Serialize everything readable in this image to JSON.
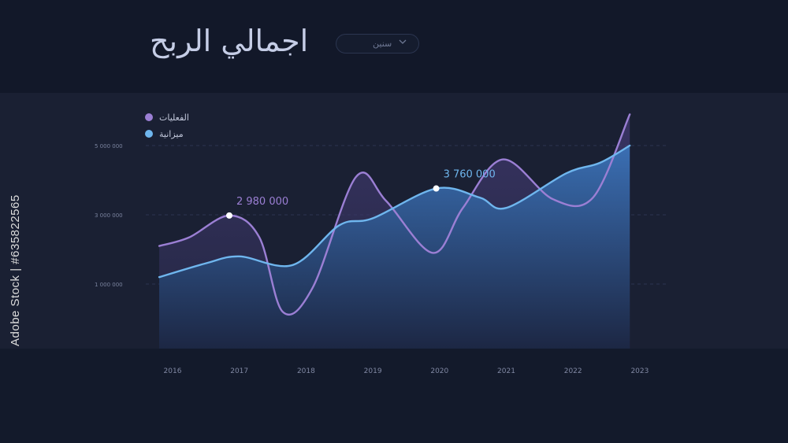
{
  "header": {
    "title": "اجمالي الربح",
    "dropdown": {
      "value": "سنين",
      "icon": "chevron-down-icon"
    }
  },
  "side_text": "Adobe Stock | #635822565",
  "colors": {
    "actual": "#9b7fd4",
    "budget": "#6fb6ee",
    "marker": "#ffffff"
  },
  "chart_data": {
    "type": "area",
    "x": [
      "2016",
      "2017",
      "2018",
      "2019",
      "2020",
      "2021",
      "2022",
      "2023"
    ],
    "y_ticks": [
      {
        "value": 1000000,
        "label": "1 000 000"
      },
      {
        "value": 3000000,
        "label": "3 000 000"
      },
      {
        "value": 5000000,
        "label": "5 000 000"
      }
    ],
    "ylim": [
      -500000,
      6500000
    ],
    "series": [
      {
        "name": "الفعليات",
        "color": "#9b7fd4",
        "points": [
          [
            2015.8,
            2100000
          ],
          [
            2016.25,
            2350000
          ],
          [
            2016.85,
            2980000
          ],
          [
            2017.3,
            2350000
          ],
          [
            2017.65,
            200000
          ],
          [
            2018.1,
            900000
          ],
          [
            2018.75,
            4100000
          ],
          [
            2019.2,
            3400000
          ],
          [
            2019.9,
            1900000
          ],
          [
            2020.35,
            3200000
          ],
          [
            2020.95,
            4600000
          ],
          [
            2021.7,
            3450000
          ],
          [
            2022.3,
            3500000
          ],
          [
            2022.85,
            5900000
          ]
        ]
      },
      {
        "name": "ميزانية",
        "color": "#6fb6ee",
        "points": [
          [
            2015.8,
            1200000
          ],
          [
            2016.5,
            1600000
          ],
          [
            2017,
            1800000
          ],
          [
            2017.8,
            1550000
          ],
          [
            2018.5,
            2700000
          ],
          [
            2019,
            2900000
          ],
          [
            2019.95,
            3760000
          ],
          [
            2020.6,
            3500000
          ],
          [
            2021,
            3200000
          ],
          [
            2021.9,
            4200000
          ],
          [
            2022.4,
            4500000
          ],
          [
            2022.85,
            5000000
          ]
        ]
      }
    ],
    "annotations": [
      {
        "x": 2016.85,
        "y": 2980000,
        "label": "2 980 000",
        "series": "الفعليات"
      },
      {
        "x": 2019.95,
        "y": 3760000,
        "label": "3 760 000",
        "series": "ميزانية"
      }
    ],
    "legend": "top-left",
    "grid": true
  }
}
